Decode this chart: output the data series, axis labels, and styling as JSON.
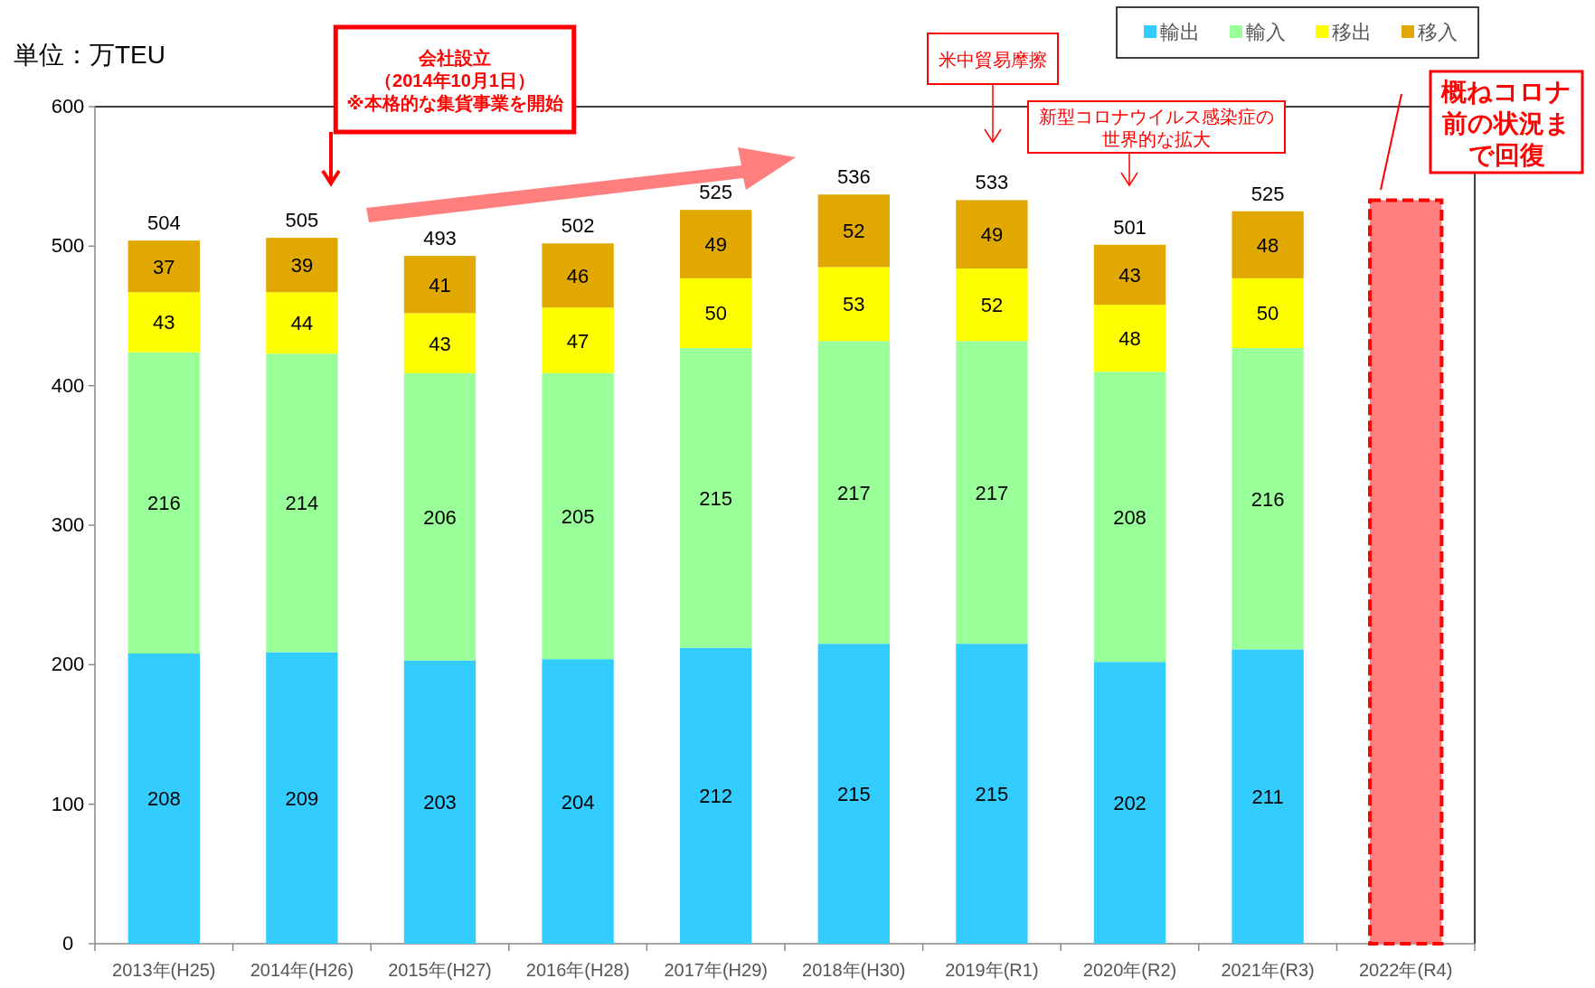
{
  "chart_data": {
    "type": "bar",
    "stacked": true,
    "categories": [
      "2013年(H25)",
      "2014年(H26)",
      "2015年(H27)",
      "2016年(H28)",
      "2017年(H29)",
      "2018年(H30)",
      "2019年(R1)",
      "2020年(R2)",
      "2021年(R3)",
      "2022年(R4)"
    ],
    "series": [
      {
        "name": "輸出",
        "color": "#33ccff",
        "values": [
          208,
          209,
          203,
          204,
          212,
          215,
          215,
          202,
          211,
          null
        ],
        "value_labels": [
          "208",
          "209",
          "203",
          "204",
          "212",
          "215",
          "215",
          "202",
          "211",
          null
        ]
      },
      {
        "name": "輸入",
        "color": "#99ff99",
        "values": [
          216,
          214,
          206,
          205,
          215,
          217,
          217,
          208,
          216,
          null
        ],
        "value_labels": [
          "216",
          "214",
          "206",
          "205",
          "215",
          "217",
          "217",
          "208",
          "216",
          null
        ]
      },
      {
        "name": "移出",
        "color": "#ffff00",
        "values": [
          43,
          44,
          43,
          47,
          50,
          53,
          52,
          48,
          50,
          null
        ],
        "value_labels": [
          "43",
          "44",
          "43",
          "47",
          "50",
          "53",
          "52",
          "48",
          "50",
          null
        ]
      },
      {
        "name": "移入",
        "color": "#e0a800",
        "values": [
          37,
          39,
          41,
          46,
          49,
          52,
          49,
          43,
          48,
          null
        ],
        "value_labels": [
          "37",
          "39",
          "41",
          "46",
          "49",
          "52",
          "49",
          "43",
          "48",
          null
        ]
      },
      {
        "color": "#ff7f7f",
        "line_style": "dashed",
        "values": [
          null,
          null,
          null,
          null,
          null,
          null,
          null,
          null,
          null,
          533
        ]
      }
    ],
    "totals": [
      "504",
      "505",
      "493",
      "502",
      "525",
      "536",
      "533",
      "501",
      "525",
      null
    ],
    "ylim": [
      0,
      600
    ],
    "yticks": [
      0,
      100,
      200,
      300,
      400,
      500,
      600
    ],
    "grid": false,
    "legend": "top right",
    "annotations": [
      "単位：万TEU",
      "会社設立（2014年10月1日）※本格的な集貨事業を開始",
      "米中貿易摩擦",
      "新型コロナウイルス感染症の世界的な拡大",
      "概ねコロナ前の状況まで回復"
    ]
  }
}
